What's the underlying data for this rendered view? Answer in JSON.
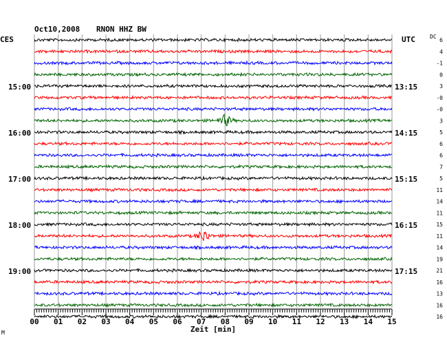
{
  "header": {
    "date": "Oct10,2008",
    "station": "RNON HHZ BW",
    "left_timezone": "CES",
    "right_timezone": "UTC",
    "dc_label": "DC"
  },
  "chart_data": {
    "type": "line",
    "title": "Oct10,2008  RNON HHZ BW",
    "xlabel": "Zeit [min]",
    "xlim": [
      0,
      15
    ],
    "x_ticks": [
      "00",
      "01",
      "02",
      "03",
      "04",
      "05",
      "06",
      "07",
      "08",
      "09",
      "10",
      "11",
      "12",
      "13",
      "14",
      "15"
    ],
    "trace_colors": [
      "#000000",
      "#ff0000",
      "#0000ff",
      "#006400"
    ],
    "left_time_labels": [
      {
        "row": 4,
        "label": "15:00"
      },
      {
        "row": 8,
        "label": "16:00"
      },
      {
        "row": 12,
        "label": "17:00"
      },
      {
        "row": 16,
        "label": "18:00"
      },
      {
        "row": 20,
        "label": "19:00"
      }
    ],
    "right_time_labels": [
      {
        "row": 4,
        "label": "13:15"
      },
      {
        "row": 8,
        "label": "14:15"
      },
      {
        "row": 12,
        "label": "15:15"
      },
      {
        "row": 16,
        "label": "16:15"
      },
      {
        "row": 20,
        "label": "17:15"
      }
    ],
    "dc_offsets": [
      "6",
      "4",
      "-1",
      "0",
      "3",
      "-0",
      "-0",
      "3",
      "5",
      "6",
      "6",
      "7",
      "5",
      "11",
      "14",
      "11",
      "15",
      "11",
      "14",
      "19",
      "21",
      "16",
      "13",
      "16",
      "16"
    ],
    "events": [
      {
        "row": 7,
        "minute": 8.0,
        "label": "event"
      },
      {
        "row": 17,
        "minute": 7.1,
        "label": "event"
      }
    ]
  },
  "footer_mark": "M"
}
